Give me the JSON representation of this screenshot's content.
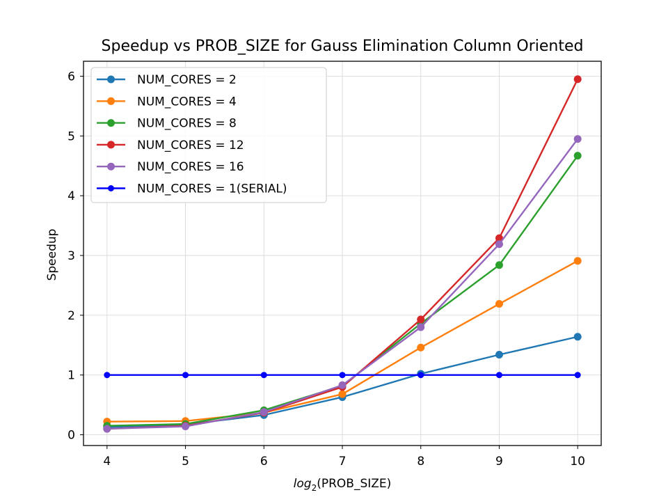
{
  "chart_data": {
    "type": "line",
    "title": "Speedup vs PROB_SIZE for Gauss Elimination Column Oriented",
    "xlabel_prefix": "log",
    "xlabel_subscript": "2",
    "xlabel_suffix": "(PROB_SIZE)",
    "ylabel": "Speedup",
    "x": [
      4,
      5,
      6,
      7,
      8,
      9,
      10
    ],
    "xlim": [
      3.7,
      10.3
    ],
    "ylim": [
      -0.18,
      6.25
    ],
    "xticks": [
      4,
      5,
      6,
      7,
      8,
      9,
      10
    ],
    "yticks": [
      0,
      1,
      2,
      3,
      4,
      5,
      6
    ],
    "grid": true,
    "legend_position": "top-left",
    "series": [
      {
        "name": "NUM_CORES = 2",
        "color": "#1f77b4",
        "values": [
          0.13,
          0.17,
          0.33,
          0.63,
          1.02,
          1.34,
          1.64
        ]
      },
      {
        "name": "NUM_CORES = 4",
        "color": "#ff7f0e",
        "values": [
          0.22,
          0.23,
          0.37,
          0.68,
          1.46,
          2.19,
          2.91
        ]
      },
      {
        "name": "NUM_CORES = 8",
        "color": "#2ca02c",
        "values": [
          0.15,
          0.18,
          0.41,
          0.82,
          1.86,
          2.84,
          4.67
        ]
      },
      {
        "name": "NUM_CORES = 12",
        "color": "#d62728",
        "values": [
          0.1,
          0.15,
          0.37,
          0.8,
          1.93,
          3.29,
          5.95
        ]
      },
      {
        "name": "NUM_CORES = 16",
        "color": "#9467bd",
        "values": [
          0.1,
          0.14,
          0.38,
          0.83,
          1.8,
          3.19,
          4.95
        ]
      },
      {
        "name": "NUM_CORES = 1(SERIAL)",
        "color": "#0000ff",
        "values": [
          1,
          1,
          1,
          1,
          1,
          1,
          1
        ]
      }
    ]
  }
}
